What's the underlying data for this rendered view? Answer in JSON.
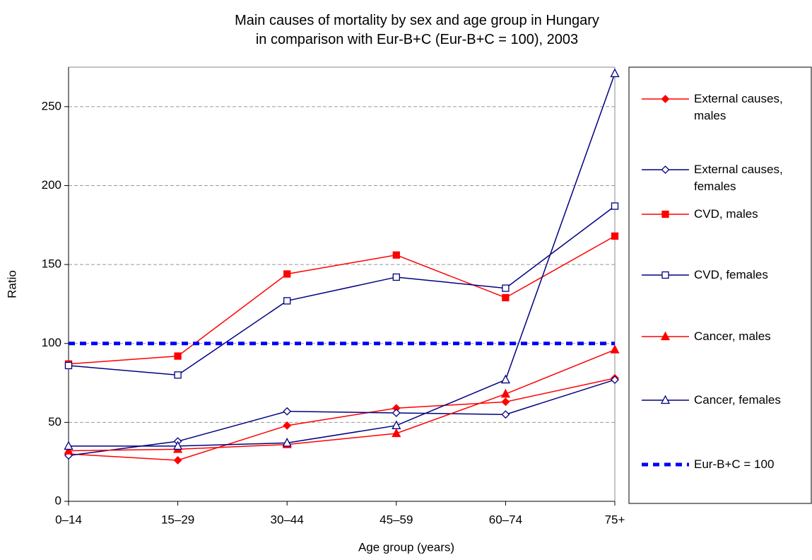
{
  "chart_data": {
    "type": "line",
    "title": "Main causes of mortality by sex and age group in Hungary\nin comparison with Eur-B+C (Eur-B+C = 100), 2003",
    "x_label": "Age group (years)",
    "y_label": "Ratio",
    "categories": [
      "0–14",
      "15–29",
      "30–44",
      "45–59",
      "60–74",
      "75+"
    ],
    "ylim": [
      0,
      275
    ],
    "yticks": [
      0,
      50,
      100,
      150,
      200,
      250
    ],
    "grid": true,
    "series": [
      {
        "name": "External causes, males",
        "color": "#ff0000",
        "marker": "diamond",
        "marker_filled": true,
        "values": [
          30,
          26,
          48,
          59,
          63,
          78
        ]
      },
      {
        "name": "External causes, females",
        "color": "#000080",
        "marker": "diamond",
        "marker_filled": false,
        "values": [
          29,
          38,
          57,
          56,
          55,
          77
        ]
      },
      {
        "name": "CVD, males",
        "color": "#ff0000",
        "marker": "square",
        "marker_filled": true,
        "values": [
          87,
          92,
          144,
          156,
          129,
          168
        ]
      },
      {
        "name": "CVD, females",
        "color": "#000080",
        "marker": "square",
        "marker_filled": false,
        "values": [
          86,
          80,
          127,
          142,
          135,
          187
        ]
      },
      {
        "name": "Cancer, males",
        "color": "#ff0000",
        "marker": "triangle",
        "marker_filled": true,
        "values": [
          32,
          33,
          36,
          43,
          68,
          96
        ]
      },
      {
        "name": "Cancer, females",
        "color": "#000080",
        "marker": "triangle",
        "marker_filled": false,
        "values": [
          35,
          35,
          37,
          48,
          77,
          271
        ]
      },
      {
        "name": "Eur-B+C = 100",
        "color": "#0000ff",
        "marker": "none",
        "dashed": true,
        "values": [
          100,
          100,
          100,
          100,
          100,
          100
        ]
      }
    ]
  }
}
